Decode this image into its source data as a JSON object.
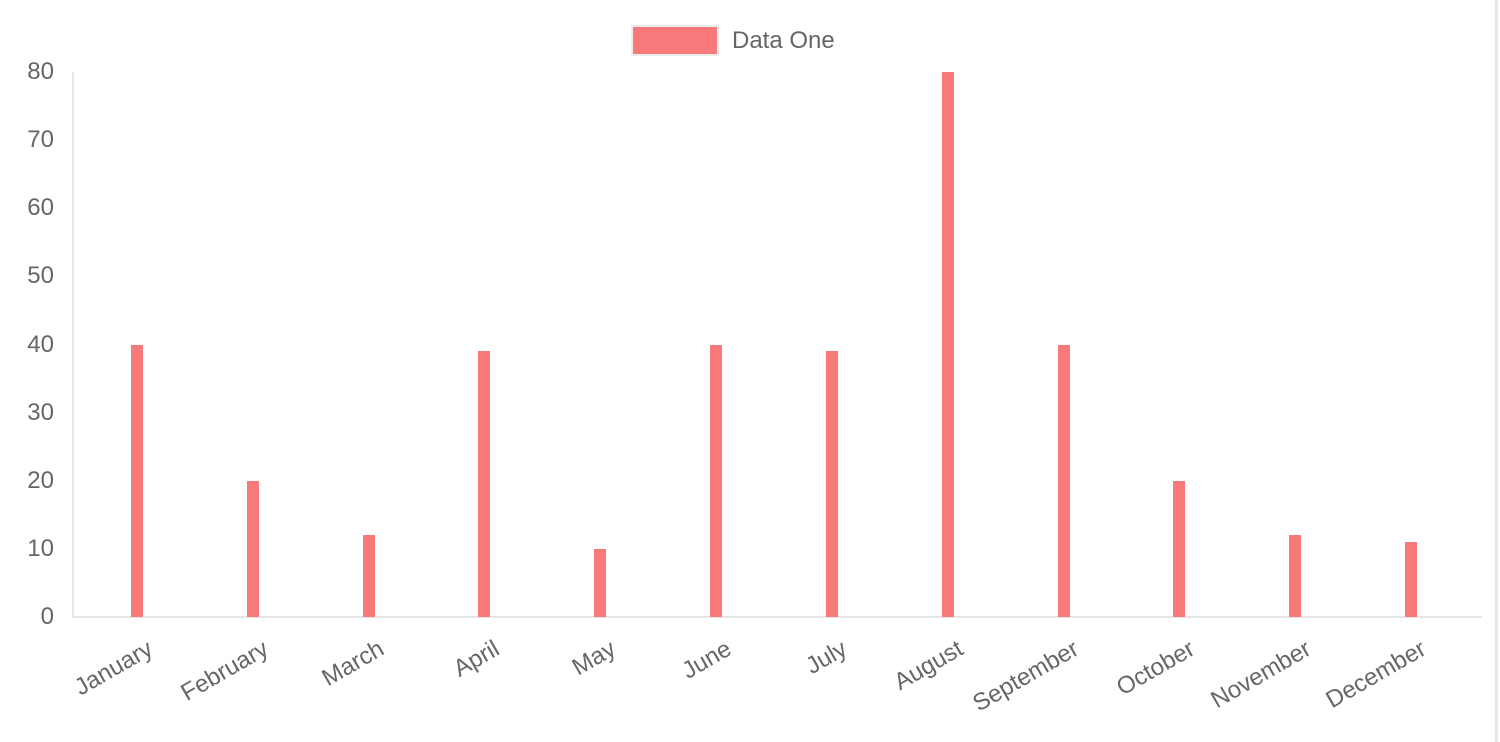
{
  "legend": {
    "label": "Data One"
  },
  "chart_data": {
    "type": "bar",
    "title": "",
    "xlabel": "",
    "ylabel": "",
    "categories": [
      "January",
      "February",
      "March",
      "April",
      "May",
      "June",
      "July",
      "August",
      "September",
      "October",
      "November",
      "December"
    ],
    "series": [
      {
        "name": "Data One",
        "color": "#f87979",
        "values": [
          40,
          20,
          12,
          39,
          10,
          40,
          39,
          80,
          40,
          20,
          12,
          11
        ]
      }
    ],
    "ylim": [
      0,
      80
    ],
    "yticks": [
      0,
      10,
      20,
      30,
      40,
      50,
      60,
      70,
      80
    ],
    "legend_position": "top-center",
    "grid": false,
    "x_label_rotation_deg": 30,
    "colors": {
      "axis_line": "#e6e6e6",
      "tick_text": "#666666",
      "background": "#ffffff"
    }
  }
}
